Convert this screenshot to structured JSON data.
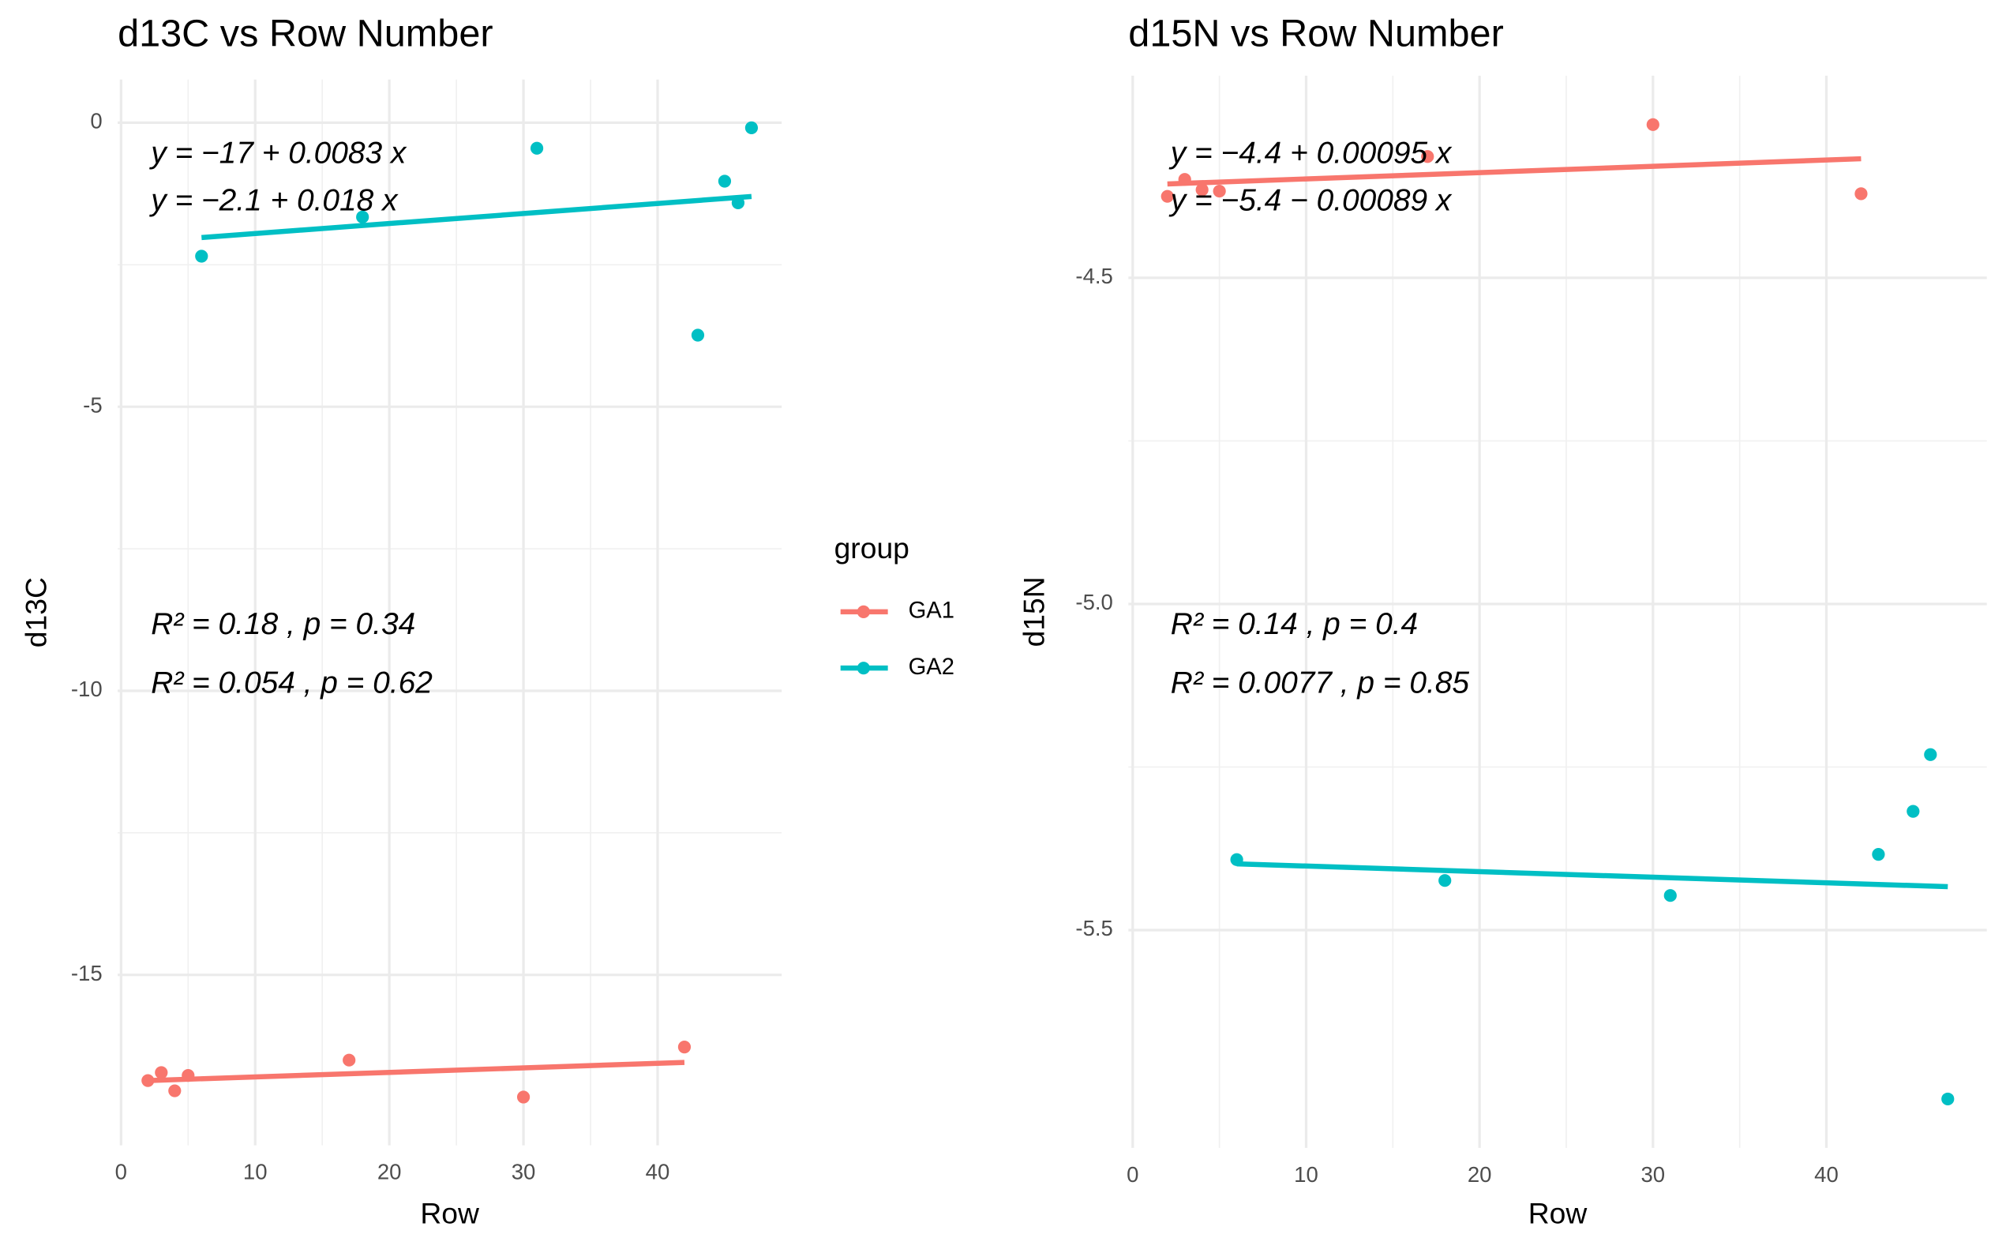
{
  "chart_data": [
    {
      "type": "scatter",
      "title": "d13C vs Row Number",
      "x_label": "Row",
      "y_label": "d13C",
      "xlim": [
        -0.25,
        49.25
      ],
      "ylim": [
        -18.0,
        0.76
      ],
      "xticks": [
        0,
        10,
        20,
        30,
        40
      ],
      "yticks": [
        -15,
        -10,
        -5,
        0
      ],
      "grid": true,
      "legend_title": "group",
      "series": [
        {
          "name": "GA1",
          "color": "#F8766D",
          "x": [
            2,
            3,
            4,
            5,
            17,
            30,
            42
          ],
          "values": [
            -16.86,
            -16.72,
            -17.04,
            -16.77,
            -16.5,
            -17.15,
            -16.27
          ],
          "equation": "y = −17 + 0.0083 x",
          "stats": "R² = 0.18 , p = 0.34"
        },
        {
          "name": "GA2",
          "color": "#00BFC4",
          "x": [
            6,
            18,
            31,
            43,
            45,
            46,
            47
          ],
          "values": [
            -2.35,
            -1.66,
            -0.45,
            -3.74,
            -1.03,
            -1.41,
            -0.09
          ],
          "equation": "y = −2.1 + 0.018 x",
          "stats": "R² = 0.054 , p = 0.62"
        }
      ]
    },
    {
      "type": "scatter",
      "title": "d15N vs Row Number",
      "x_label": "Row",
      "y_label": "d15N",
      "xlim": [
        -0.25,
        49.25
      ],
      "ylim": [
        -5.834,
        -4.19
      ],
      "xticks": [
        0,
        10,
        20,
        30,
        40
      ],
      "yticks": [
        {
          "value": -5.5,
          "label": "-5.5"
        },
        {
          "value": -5,
          "label": "-5.0"
        },
        {
          "value": -4.5,
          "label": "-4.5"
        }
      ],
      "grid": true,
      "series": [
        {
          "name": "GA1",
          "color": "#F8766D",
          "x": [
            2,
            3,
            4,
            5,
            17,
            30,
            42
          ],
          "values": [
            -4.375,
            -4.349,
            -4.365,
            -4.367,
            -4.314,
            -4.265,
            -4.371
          ],
          "equation": "y = −4.4 + 0.00095 x",
          "stats": "R² = 0.14 , p = 0.4"
        },
        {
          "name": "GA2",
          "color": "#00BFC4",
          "x": [
            6,
            18,
            31,
            43,
            45,
            46,
            47
          ],
          "values": [
            -5.392,
            -5.424,
            -5.447,
            -5.384,
            -5.318,
            -5.231,
            -5.759
          ],
          "equation": "y = −5.4 − 0.00089 x",
          "stats": "R² = 0.0077 , p = 0.85"
        }
      ]
    }
  ]
}
